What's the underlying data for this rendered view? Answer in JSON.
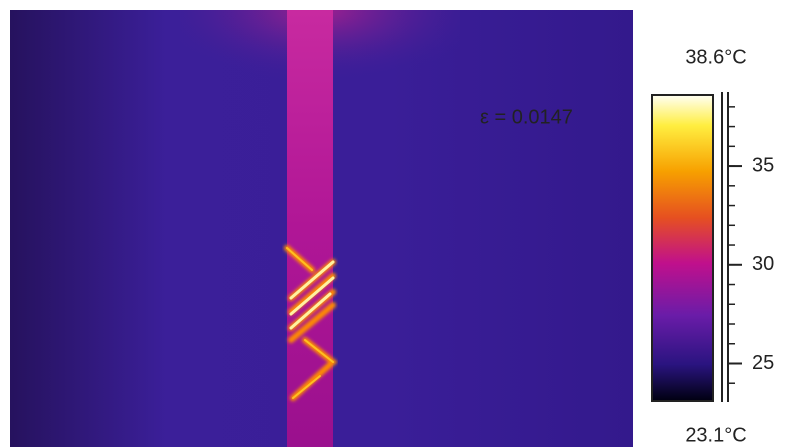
{
  "image": {
    "emissivity_label": "ε = 0.0147"
  },
  "colorbar": {
    "lim": [
      {
        "value": 23.1,
        "label": "23.1°C"
      },
      {
        "value": 38.6,
        "label": "38.6°C"
      }
    ],
    "ticks": [
      25,
      30,
      35
    ]
  }
}
